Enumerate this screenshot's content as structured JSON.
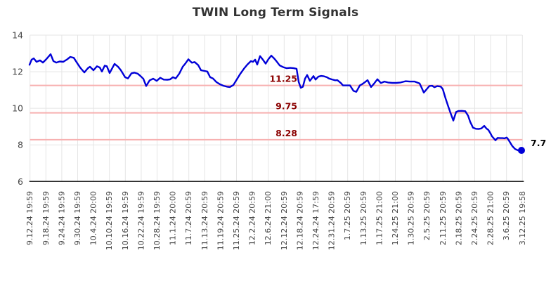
{
  "title": "TWIN Long Term Signals",
  "colors": {
    "series": "#0000d8",
    "end_dot": "#0000d8",
    "signal_line": "#f7b0b0",
    "signal_label": "#8b0000",
    "grid": "#e5e5e5",
    "axis": "#262626",
    "tick_label": "#444444",
    "title": "#333333",
    "last_value_label": "#000000"
  },
  "chart_data": {
    "type": "line",
    "title": "TWIN Long Term Signals",
    "xlabel": "",
    "ylabel": "",
    "ylim": [
      6,
      14
    ],
    "yticks": [
      14,
      12,
      10,
      8,
      6
    ],
    "grid": true,
    "legend": "none",
    "x_tick_labels": [
      "9.12.24 19:59",
      "9.18.24 19:59",
      "9.24.24 19:59",
      "9.30.24 19:59",
      "10.4.24 20:00",
      "10.10.24 19:59",
      "10.16.24 19:59",
      "10.22.24 19:59",
      "10.28.24 19:59",
      "11.1.24 20:00",
      "11.7.24 20:59",
      "11.13.24 20:59",
      "11.19.24 20:59",
      "11.25.24 20:59",
      "12.2.24 20:59",
      "12.6.24 21:00",
      "12.12.24 20:59",
      "12.18.24 20:59",
      "12.24.24 17:59",
      "12.31.24 20:59",
      "1.7.25 20:59",
      "1.13.25 20:59",
      "1.17.25 21:00",
      "1.24.25 21:00",
      "1.30.25 20:59",
      "2.5.25 20:59",
      "2.11.25 20:59",
      "2.18.25 20:59",
      "2.24.25 20:59",
      "2.28.25 21:00",
      "3.6.25 20:59",
      "3.12.25 19:58"
    ],
    "signal_lines": [
      {
        "value": 11.25,
        "label": "11.25"
      },
      {
        "value": 9.75,
        "label": "9.75"
      },
      {
        "value": 8.28,
        "label": "8.28"
      }
    ],
    "last_value_label": "7.7",
    "series": [
      {
        "name": "TWIN",
        "color": "#0000d8",
        "points": [
          [
            42,
            12.38
          ],
          [
            45,
            12.66
          ],
          [
            48,
            12.73
          ],
          [
            52,
            12.54
          ],
          [
            57,
            12.62
          ],
          [
            61,
            12.5
          ],
          [
            66,
            12.69
          ],
          [
            72,
            12.96
          ],
          [
            76,
            12.58
          ],
          [
            80,
            12.5
          ],
          [
            85,
            12.56
          ],
          [
            90,
            12.54
          ],
          [
            95,
            12.66
          ],
          [
            100,
            12.81
          ],
          [
            105,
            12.76
          ],
          [
            110,
            12.46
          ],
          [
            114,
            12.23
          ],
          [
            120,
            11.96
          ],
          [
            125,
            12.19
          ],
          [
            128,
            12.27
          ],
          [
            133,
            12.08
          ],
          [
            138,
            12.3
          ],
          [
            142,
            12.23
          ],
          [
            145,
            12.01
          ],
          [
            149,
            12.33
          ],
          [
            152,
            12.3
          ],
          [
            156,
            11.93
          ],
          [
            163,
            12.43
          ],
          [
            168,
            12.27
          ],
          [
            172,
            12.08
          ],
          [
            178,
            11.7
          ],
          [
            182,
            11.63
          ],
          [
            187,
            11.91
          ],
          [
            191,
            11.95
          ],
          [
            196,
            11.89
          ],
          [
            200,
            11.76
          ],
          [
            204,
            11.61
          ],
          [
            208,
            11.22
          ],
          [
            213,
            11.53
          ],
          [
            218,
            11.62
          ],
          [
            223,
            11.5
          ],
          [
            228,
            11.67
          ],
          [
            233,
            11.57
          ],
          [
            238,
            11.56
          ],
          [
            242,
            11.58
          ],
          [
            246,
            11.7
          ],
          [
            250,
            11.63
          ],
          [
            255,
            11.89
          ],
          [
            260,
            12.27
          ],
          [
            264,
            12.46
          ],
          [
            268,
            12.68
          ],
          [
            273,
            12.49
          ],
          [
            277,
            12.53
          ],
          [
            282,
            12.36
          ],
          [
            286,
            12.08
          ],
          [
            291,
            12.04
          ],
          [
            295,
            12.01
          ],
          [
            299,
            11.7
          ],
          [
            303,
            11.63
          ],
          [
            308,
            11.43
          ],
          [
            313,
            11.31
          ],
          [
            318,
            11.23
          ],
          [
            323,
            11.18
          ],
          [
            327,
            11.16
          ],
          [
            332,
            11.27
          ],
          [
            337,
            11.58
          ],
          [
            342,
            11.89
          ],
          [
            347,
            12.16
          ],
          [
            352,
            12.39
          ],
          [
            357,
            12.58
          ],
          [
            360,
            12.54
          ],
          [
            363,
            12.66
          ],
          [
            366,
            12.39
          ],
          [
            370,
            12.85
          ],
          [
            374,
            12.66
          ],
          [
            378,
            12.44
          ],
          [
            382,
            12.69
          ],
          [
            386,
            12.88
          ],
          [
            390,
            12.73
          ],
          [
            393,
            12.59
          ],
          [
            398,
            12.34
          ],
          [
            403,
            12.25
          ],
          [
            408,
            12.19
          ],
          [
            413,
            12.21
          ],
          [
            418,
            12.19
          ],
          [
            422,
            12.16
          ],
          [
            425,
            11.44
          ],
          [
            428,
            11.12
          ],
          [
            431,
            11.18
          ],
          [
            434,
            11.62
          ],
          [
            437,
            11.82
          ],
          [
            441,
            11.5
          ],
          [
            446,
            11.76
          ],
          [
            449,
            11.57
          ],
          [
            453,
            11.73
          ],
          [
            457,
            11.77
          ],
          [
            461,
            11.75
          ],
          [
            465,
            11.7
          ],
          [
            468,
            11.63
          ],
          [
            472,
            11.58
          ],
          [
            477,
            11.53
          ],
          [
            480,
            11.54
          ],
          [
            485,
            11.38
          ],
          [
            488,
            11.25
          ],
          [
            492,
            11.25
          ],
          [
            498,
            11.25
          ],
          [
            503,
            10.95
          ],
          [
            507,
            10.9
          ],
          [
            512,
            11.25
          ],
          [
            515,
            11.31
          ],
          [
            519,
            11.42
          ],
          [
            523,
            11.54
          ],
          [
            528,
            11.16
          ],
          [
            532,
            11.34
          ],
          [
            537,
            11.59
          ],
          [
            542,
            11.38
          ],
          [
            547,
            11.46
          ],
          [
            552,
            11.41
          ],
          [
            558,
            11.39
          ],
          [
            564,
            11.39
          ],
          [
            570,
            11.41
          ],
          [
            577,
            11.48
          ],
          [
            583,
            11.46
          ],
          [
            590,
            11.46
          ],
          [
            597,
            11.36
          ],
          [
            600,
            11.12
          ],
          [
            603,
            10.86
          ],
          [
            607,
            11.04
          ],
          [
            611,
            11.22
          ],
          [
            615,
            11.23
          ],
          [
            618,
            11.15
          ],
          [
            622,
            11.21
          ],
          [
            627,
            11.19
          ],
          [
            630,
            11.05
          ],
          [
            634,
            10.54
          ],
          [
            638,
            10.08
          ],
          [
            641,
            9.75
          ],
          [
            645,
            9.33
          ],
          [
            649,
            9.8
          ],
          [
            652,
            9.85
          ],
          [
            657,
            9.86
          ],
          [
            662,
            9.84
          ],
          [
            666,
            9.6
          ],
          [
            669,
            9.26
          ],
          [
            673,
            8.94
          ],
          [
            677,
            8.88
          ],
          [
            681,
            8.87
          ],
          [
            685,
            8.9
          ],
          [
            689,
            9.04
          ],
          [
            692,
            8.9
          ],
          [
            695,
            8.81
          ],
          [
            698,
            8.62
          ],
          [
            700,
            8.47
          ],
          [
            705,
            8.25
          ],
          [
            708,
            8.38
          ],
          [
            712,
            8.37
          ],
          [
            715,
            8.37
          ],
          [
            718,
            8.36
          ],
          [
            721,
            8.4
          ],
          [
            723,
            8.31
          ],
          [
            726,
            8.12
          ],
          [
            729,
            7.93
          ],
          [
            733,
            7.77
          ],
          [
            737,
            7.7
          ],
          [
            742,
            7.7
          ]
        ]
      }
    ]
  }
}
